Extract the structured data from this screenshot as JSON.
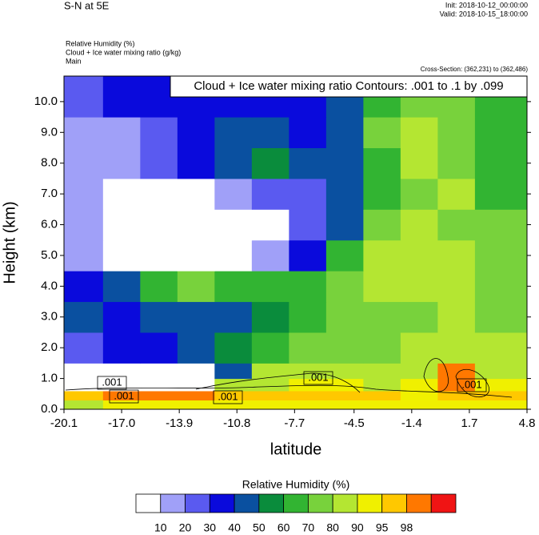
{
  "chart_data": {
    "type": "contour",
    "title": "S-N at 5E",
    "init": "Init: 2018-10-12_00:00:00",
    "valid": "Valid: 2018-10-15_18:00:00",
    "field_label_1": "Relative Humidity   (%)",
    "field_label_2": "Cloud + Ice water mixing ratio   (g/kg)",
    "field_label_3": "Main",
    "cross_section": "Cross-Section: (362,231) to (362,486)",
    "contour_info": "Cloud + Ice water mixing ratio Contours: .001 to .1 by .099",
    "x_label": "latitude",
    "y_label": "Height (km)",
    "xlim": [
      -20.1,
      4.8
    ],
    "ylim": [
      0,
      10.83
    ],
    "xticks": [
      -20.1,
      {
        "value": -17,
        "label": "-17.0"
      },
      -13.9,
      -10.8,
      -7.7,
      -4.5,
      -1.4,
      1.7,
      4.8
    ],
    "yticks": [
      {
        "value": 0,
        "label": "0.0"
      },
      {
        "value": 1,
        "label": "1.0"
      },
      {
        "value": 2,
        "label": "2.0"
      },
      {
        "value": 3,
        "label": "3.0"
      },
      {
        "value": 4,
        "label": "4.0"
      },
      {
        "value": 5,
        "label": "5.0"
      },
      {
        "value": 6,
        "label": "6.0"
      },
      {
        "value": 7,
        "label": "7.0"
      },
      {
        "value": 8,
        "label": "8.0"
      },
      {
        "value": 9,
        "label": "9.0"
      },
      {
        "value": 10,
        "label": "10.0"
      }
    ],
    "x_edges": [
      -20.1,
      -18,
      -16,
      -14,
      -12,
      -10,
      -8,
      -6,
      -4,
      -2,
      0,
      2,
      4.8
    ],
    "y_edges": [
      0,
      0.3,
      0.6,
      1.0,
      1.5,
      2.5,
      3.5,
      4.5,
      5.5,
      6.5,
      7.5,
      8.5,
      9.5,
      10.83
    ],
    "z": [
      [
        88,
        90,
        90,
        90,
        90,
        92,
        92,
        92,
        92,
        92,
        92,
        92
      ],
      [
        97,
        99,
        99,
        99,
        97,
        97,
        97,
        96,
        95,
        94,
        96,
        95
      ],
      [
        5,
        5,
        5,
        5,
        80,
        88,
        92,
        90,
        88,
        92,
        99,
        94
      ],
      [
        5,
        5,
        5,
        5,
        40,
        80,
        85,
        80,
        80,
        88,
        98,
        85
      ],
      [
        20,
        30,
        35,
        40,
        50,
        60,
        70,
        70,
        75,
        80,
        85,
        80
      ],
      [
        45,
        35,
        40,
        45,
        45,
        55,
        65,
        70,
        75,
        75,
        80,
        75
      ],
      [
        30,
        40,
        60,
        70,
        65,
        60,
        65,
        70,
        80,
        85,
        80,
        75
      ],
      [
        15,
        5,
        5,
        5,
        5,
        15,
        30,
        60,
        80,
        85,
        80,
        75
      ],
      [
        15,
        5,
        5,
        5,
        5,
        5,
        20,
        45,
        75,
        85,
        75,
        70
      ],
      [
        15,
        5,
        5,
        5,
        15,
        25,
        25,
        40,
        60,
        75,
        80,
        65
      ],
      [
        15,
        15,
        25,
        35,
        45,
        55,
        40,
        40,
        60,
        80,
        75,
        60
      ],
      [
        15,
        15,
        25,
        35,
        40,
        45,
        35,
        45,
        70,
        80,
        70,
        65
      ],
      [
        25,
        30,
        35,
        35,
        35,
        30,
        30,
        40,
        60,
        75,
        70,
        65
      ]
    ],
    "colorbar_title": "Relative Humidity  (%)",
    "levels": [
      10,
      20,
      30,
      40,
      50,
      60,
      70,
      80,
      90,
      95,
      98
    ],
    "colors": [
      "#ffffff",
      "#a0a0f8",
      "#5a5af0",
      "#0a0adc",
      "#0a50a0",
      "#0a8c3c",
      "#32b432",
      "#78d23c",
      "#b4e632",
      "#f0f000",
      "#ffc800",
      "#ff7800",
      "#f01414"
    ],
    "contour_labels": [
      ".001",
      ".001",
      ".001",
      ".001",
      ".001"
    ]
  }
}
